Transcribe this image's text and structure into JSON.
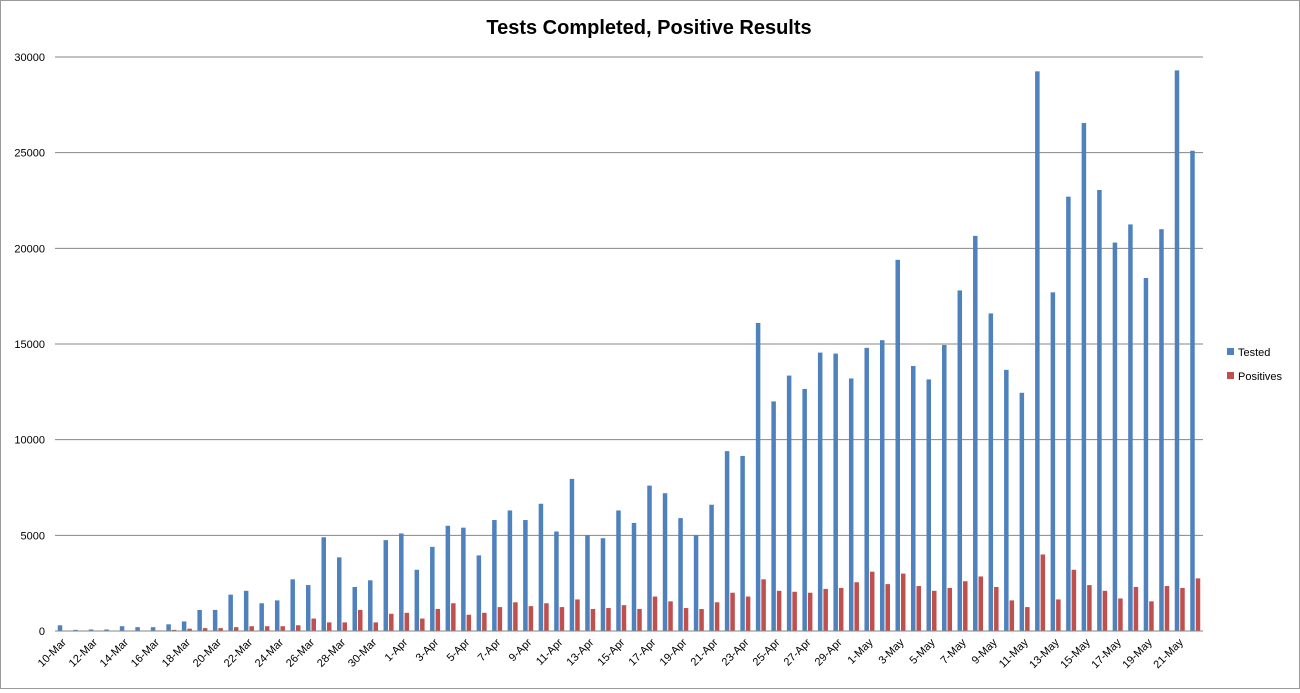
{
  "chart_data": {
    "type": "bar",
    "title": "Tests Completed, Positive Results",
    "xlabel": "",
    "ylabel": "",
    "ylim": [
      0,
      30000
    ],
    "yticks": [
      0,
      5000,
      10000,
      15000,
      20000,
      25000,
      30000
    ],
    "grid": true,
    "legend_position": "right",
    "categories": [
      "10-Mar",
      "11-Mar",
      "12-Mar",
      "13-Mar",
      "14-Mar",
      "15-Mar",
      "16-Mar",
      "17-Mar",
      "18-Mar",
      "19-Mar",
      "20-Mar",
      "21-Mar",
      "22-Mar",
      "23-Mar",
      "24-Mar",
      "25-Mar",
      "26-Mar",
      "27-Mar",
      "28-Mar",
      "29-Mar",
      "30-Mar",
      "31-Mar",
      "1-Apr",
      "2-Apr",
      "3-Apr",
      "4-Apr",
      "5-Apr",
      "6-Apr",
      "7-Apr",
      "8-Apr",
      "9-Apr",
      "10-Apr",
      "11-Apr",
      "12-Apr",
      "13-Apr",
      "14-Apr",
      "15-Apr",
      "16-Apr",
      "17-Apr",
      "18-Apr",
      "19-Apr",
      "20-Apr",
      "21-Apr",
      "22-Apr",
      "23-Apr",
      "24-Apr",
      "25-Apr",
      "26-Apr",
      "27-Apr",
      "28-Apr",
      "29-Apr",
      "30-Apr",
      "1-May",
      "2-May",
      "3-May",
      "4-May",
      "5-May",
      "6-May",
      "7-May",
      "8-May",
      "9-May",
      "10-May",
      "11-May",
      "12-May",
      "13-May",
      "14-May",
      "15-May",
      "16-May",
      "17-May",
      "18-May",
      "19-May",
      "20-May",
      "21-May",
      "22-May"
    ],
    "tick_labels": [
      "10-Mar",
      "",
      "12-Mar",
      "",
      "14-Mar",
      "",
      "16-Mar",
      "",
      "18-Mar",
      "",
      "20-Mar",
      "",
      "22-Mar",
      "",
      "24-Mar",
      "",
      "26-Mar",
      "",
      "28-Mar",
      "",
      "30-Mar",
      "",
      "1-Apr",
      "",
      "3-Apr",
      "",
      "5-Apr",
      "",
      "7-Apr",
      "",
      "9-Apr",
      "",
      "11-Apr",
      "",
      "13-Apr",
      "",
      "15-Apr",
      "",
      "17-Apr",
      "",
      "19-Apr",
      "",
      "21-Apr",
      "",
      "23-Apr",
      "",
      "25-Apr",
      "",
      "27-Apr",
      "",
      "29-Apr",
      "",
      "1-May",
      "",
      "3-May",
      "",
      "5-May",
      "",
      "7-May",
      "",
      "9-May",
      "",
      "11-May",
      "",
      "13-May",
      "",
      "15-May",
      "",
      "17-May",
      "",
      "19-May",
      "",
      "21-May",
      ""
    ],
    "series": [
      {
        "name": "Tested",
        "color": "#4f81bd",
        "values": [
          300,
          60,
          80,
          80,
          250,
          200,
          200,
          350,
          500,
          1100,
          1100,
          1900,
          2100,
          1450,
          1600,
          2700,
          2400,
          4900,
          3850,
          2300,
          2650,
          4750,
          5100,
          3200,
          4400,
          5500,
          5400,
          3950,
          5800,
          6300,
          5800,
          6650,
          5200,
          7950,
          5000,
          4850,
          6300,
          5650,
          7600,
          7200,
          5900,
          5000,
          6600,
          9400,
          9150,
          16100,
          12000,
          13350,
          12650,
          14550,
          14500,
          13200,
          14800,
          15200,
          19400,
          13850,
          13150,
          14950,
          17800,
          20650,
          16600,
          13650,
          12450,
          29250,
          17700,
          22700,
          26550,
          23050,
          20300,
          21250,
          18450,
          21000,
          29300,
          25100
        ]
      },
      {
        "name": "Positives",
        "color": "#c0504d",
        "values": [
          20,
          10,
          10,
          10,
          20,
          20,
          30,
          60,
          120,
          150,
          150,
          200,
          250,
          250,
          250,
          300,
          650,
          450,
          450,
          1100,
          450,
          900,
          950,
          650,
          1150,
          1450,
          850,
          950,
          1250,
          1500,
          1300,
          1450,
          1250,
          1650,
          1150,
          1200,
          1350,
          1150,
          1800,
          1550,
          1200,
          1150,
          1500,
          2000,
          1800,
          2700,
          2100,
          2050,
          2000,
          2200,
          2250,
          2550,
          3100,
          2450,
          3000,
          2350,
          2100,
          2250,
          2600,
          2850,
          2300,
          1600,
          1250,
          4000,
          1650,
          3200,
          2400,
          2100,
          1700,
          2300,
          1550,
          2350,
          2250,
          2750
        ]
      }
    ]
  }
}
